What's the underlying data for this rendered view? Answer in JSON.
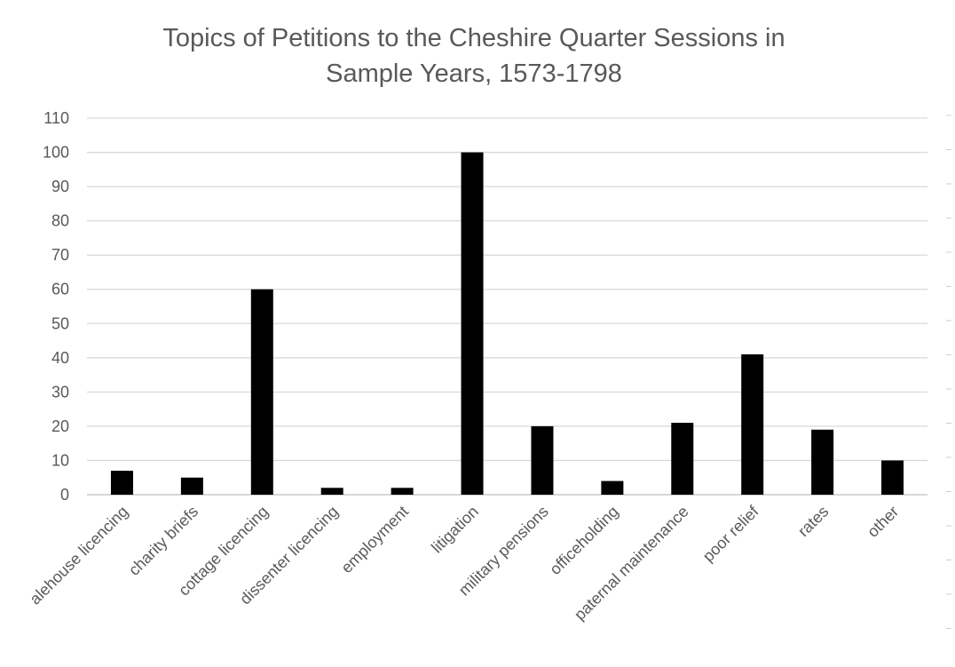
{
  "chart_data": {
    "type": "bar",
    "title_lines": [
      "Topics of Petitions to the Cheshire Quarter Sessions in",
      "Sample Years, 1573-1798"
    ],
    "xlabel": "",
    "ylabel": "",
    "ylim": [
      0,
      110
    ],
    "yticks": [
      0,
      10,
      20,
      30,
      40,
      50,
      60,
      70,
      80,
      90,
      100,
      110
    ],
    "grid": true,
    "legend": "none",
    "bar_color": "#000000",
    "categories": [
      "alehouse licencing",
      "charity briefs",
      "cottage licencing",
      "dissenter licencing",
      "employment",
      "litigation",
      "military pensions",
      "officeholding",
      "paternal maintenance",
      "poor relief",
      "rates",
      "other"
    ],
    "values": [
      7,
      5,
      60,
      2,
      2,
      100,
      20,
      4,
      21,
      41,
      19,
      10
    ]
  }
}
